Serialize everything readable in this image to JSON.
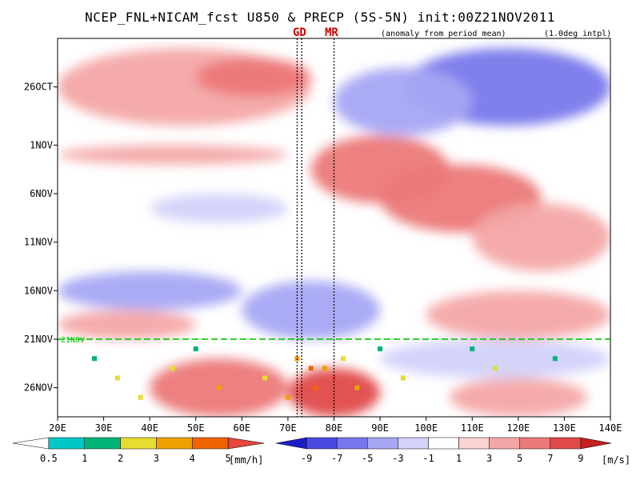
{
  "title": "NCEP_FNL+NICAM_fcst U850 & PRECP (5S-5N) init:00Z21NOV2011",
  "subtitle_left": "(anomaly from period mean)",
  "subtitle_right": "(1.0deg intpl)",
  "markers": {
    "gd": {
      "label": "GD",
      "lon": 72.5
    },
    "mr": {
      "label": "MR",
      "lon": 80
    }
  },
  "colors": {
    "wind_scale": [
      "#1e1ec8",
      "#4a4ae0",
      "#7878ec",
      "#a6a6f4",
      "#d2d2fa",
      "#ffffff",
      "#fad2d2",
      "#f4a6a6",
      "#ec7878",
      "#e04a4a",
      "#c81e1e"
    ],
    "precip_scale": [
      "#ffffff",
      "#00c8c8",
      "#00b478",
      "#e6dc32",
      "#f0a000",
      "#f06400",
      "#e6463c"
    ],
    "forecast_line": "#00c800"
  },
  "chart_data": {
    "type": "heatmap",
    "description_type": "Hovmoller longitude-time",
    "x_axis": {
      "label": "",
      "range": [
        20,
        140
      ],
      "unit": "degE",
      "ticks": [
        "20E",
        "30E",
        "40E",
        "50E",
        "60E",
        "70E",
        "80E",
        "90E",
        "100E",
        "110E",
        "120E",
        "130E",
        "140E"
      ]
    },
    "y_axis": {
      "label": "",
      "range": [
        "2011-10-21",
        "2011-11-29"
      ],
      "inverted": true,
      "ticks": [
        {
          "label": "26OCT",
          "date": "2011-10-26"
        },
        {
          "label": "1NOV",
          "date": "2011-11-01"
        },
        {
          "label": "6NOV",
          "date": "2011-11-06"
        },
        {
          "label": "11NOV",
          "date": "2011-11-11"
        },
        {
          "label": "16NOV",
          "date": "2011-11-16"
        },
        {
          "label": "21NOV",
          "date": "2011-11-21"
        },
        {
          "label": "26NOV",
          "date": "2011-11-26"
        }
      ]
    },
    "forecast_start": {
      "date": "2011-11-21",
      "label": "21NOV"
    },
    "vertical_lines_lon": [
      72,
      73,
      80
    ],
    "u850_colorbar": {
      "levels": [
        "-9",
        "-7",
        "-5",
        "-3",
        "-1",
        "1",
        "3",
        "5",
        "7",
        "9"
      ],
      "unit": "[m/s]"
    },
    "precip_colorbar": {
      "levels": [
        "0.5",
        "1",
        "2",
        "3",
        "4",
        "5"
      ],
      "unit": "[mm/h]"
    },
    "anomaly_regions": [
      {
        "sign": "negative",
        "lon": [
          95,
          140
        ],
        "date": [
          "2011-10-22",
          "2011-10-30"
        ],
        "magnitude": -6
      },
      {
        "sign": "negative",
        "lon": [
          80,
          110
        ],
        "date": [
          "2011-10-24",
          "2011-10-31"
        ],
        "magnitude": -4
      },
      {
        "sign": "positive",
        "lon": [
          20,
          75
        ],
        "date": [
          "2011-10-22",
          "2011-10-30"
        ],
        "magnitude": 3
      },
      {
        "sign": "positive",
        "lon": [
          50,
          75
        ],
        "date": [
          "2011-10-23",
          "2011-10-27"
        ],
        "magnitude": 5
      },
      {
        "sign": "positive",
        "lon": [
          75,
          105
        ],
        "date": [
          "2011-10-31",
          "2011-11-07"
        ],
        "magnitude": 5
      },
      {
        "sign": "positive",
        "lon": [
          90,
          125
        ],
        "date": [
          "2011-11-03",
          "2011-11-10"
        ],
        "magnitude": 6
      },
      {
        "sign": "positive",
        "lon": [
          110,
          140
        ],
        "date": [
          "2011-11-07",
          "2011-11-14"
        ],
        "magnitude": 4
      },
      {
        "sign": "positive",
        "lon": [
          20,
          70
        ],
        "date": [
          "2011-11-01",
          "2011-11-03"
        ],
        "magnitude": 3
      },
      {
        "sign": "negative",
        "lon": [
          40,
          70
        ],
        "date": [
          "2011-11-06",
          "2011-11-09"
        ],
        "magnitude": -3
      },
      {
        "sign": "negative",
        "lon": [
          20,
          60
        ],
        "date": [
          "2011-11-14",
          "2011-11-18"
        ],
        "magnitude": -4
      },
      {
        "sign": "negative",
        "lon": [
          60,
          90
        ],
        "date": [
          "2011-11-15",
          "2011-11-21"
        ],
        "magnitude": -4
      },
      {
        "sign": "positive",
        "lon": [
          20,
          50
        ],
        "date": [
          "2011-11-18",
          "2011-11-21"
        ],
        "magnitude": 3
      },
      {
        "sign": "positive",
        "lon": [
          100,
          140
        ],
        "date": [
          "2011-11-16",
          "2011-11-21"
        ],
        "magnitude": 4
      },
      {
        "sign": "negative",
        "lon": [
          90,
          140
        ],
        "date": [
          "2011-11-21",
          "2011-11-25"
        ],
        "magnitude": -3
      },
      {
        "sign": "positive",
        "lon": [
          40,
          70
        ],
        "date": [
          "2011-11-23",
          "2011-11-29"
        ],
        "magnitude": 5
      },
      {
        "sign": "positive",
        "lon": [
          70,
          90
        ],
        "date": [
          "2011-11-24",
          "2011-11-29"
        ],
        "magnitude": 7
      },
      {
        "sign": "positive",
        "lon": [
          105,
          135
        ],
        "date": [
          "2011-11-25",
          "2011-11-29"
        ],
        "magnitude": 4
      }
    ],
    "precip_cells": [
      {
        "lon": 72,
        "date": "2011-11-23",
        "mmh": 3.5
      },
      {
        "lon": 75,
        "date": "2011-11-24",
        "mmh": 4.5
      },
      {
        "lon": 78,
        "date": "2011-11-24",
        "mmh": 3
      },
      {
        "lon": 80,
        "date": "2011-11-25",
        "mmh": 5
      },
      {
        "lon": 82,
        "date": "2011-11-23",
        "mmh": 2.5
      },
      {
        "lon": 76,
        "date": "2011-11-26",
        "mmh": 4
      },
      {
        "lon": 33,
        "date": "2011-11-25",
        "mmh": 2
      },
      {
        "lon": 28,
        "date": "2011-11-23",
        "mmh": 1.5
      },
      {
        "lon": 45,
        "date": "2011-11-24",
        "mmh": 2
      },
      {
        "lon": 55,
        "date": "2011-11-26",
        "mmh": 3
      },
      {
        "lon": 65,
        "date": "2011-11-25",
        "mmh": 2
      },
      {
        "lon": 90,
        "date": "2011-11-22",
        "mmh": 1.5
      },
      {
        "lon": 95,
        "date": "2011-11-25",
        "mmh": 2
      },
      {
        "lon": 110,
        "date": "2011-11-22",
        "mmh": 1.5
      },
      {
        "lon": 115,
        "date": "2011-11-24",
        "mmh": 2
      },
      {
        "lon": 128,
        "date": "2011-11-23",
        "mmh": 1
      },
      {
        "lon": 50,
        "date": "2011-11-22",
        "mmh": 1
      },
      {
        "lon": 70,
        "date": "2011-11-27",
        "mmh": 3
      },
      {
        "lon": 85,
        "date": "2011-11-26",
        "mmh": 3.5
      },
      {
        "lon": 38,
        "date": "2011-11-27",
        "mmh": 2
      }
    ]
  }
}
